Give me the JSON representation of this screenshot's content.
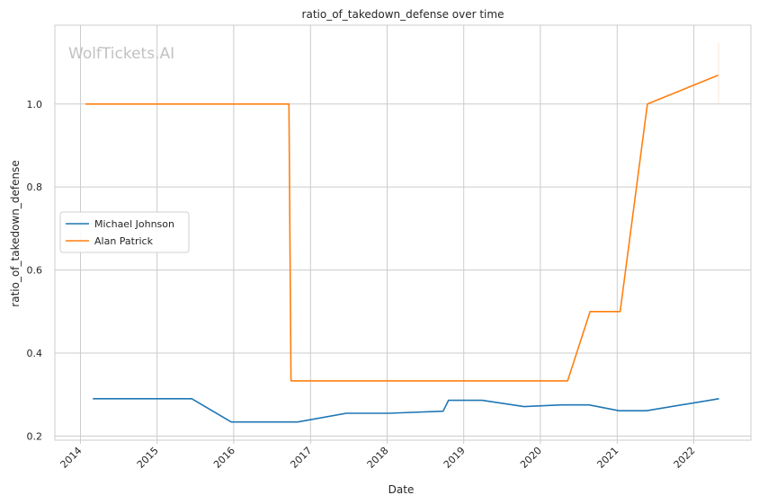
{
  "chart_data": {
    "type": "line",
    "title": "ratio_of_takedown_defense over time",
    "xlabel": "Date",
    "ylabel": "ratio_of_takedown_defense",
    "watermark": "WolfTickets.AI",
    "xlim": [
      "2013-09-01",
      "2022-09-30"
    ],
    "ylim": [
      0.19,
      1.19
    ],
    "x_ticks": [
      "2014",
      "2015",
      "2016",
      "2017",
      "2018",
      "2019",
      "2020",
      "2021",
      "2022"
    ],
    "y_ticks": [
      {
        "value": 0.2,
        "label": "0.2"
      },
      {
        "value": 0.4,
        "label": "0.4"
      },
      {
        "value": 0.6,
        "label": "0.6"
      },
      {
        "value": 0.8,
        "label": "0.8"
      },
      {
        "value": 1.0,
        "label": "1.0"
      }
    ],
    "grid": true,
    "legend_position": "center-left",
    "series": [
      {
        "name": "Michael Johnson",
        "color": "#1f77b4",
        "points": [
          [
            "2014-03-01",
            0.29
          ],
          [
            "2015-06-15",
            0.29
          ],
          [
            "2015-12-20",
            0.234
          ],
          [
            "2016-11-01",
            0.234
          ],
          [
            "2017-06-20",
            0.255
          ],
          [
            "2018-01-10",
            0.255
          ],
          [
            "2018-09-25",
            0.26
          ],
          [
            "2018-10-20",
            0.286
          ],
          [
            "2019-03-30",
            0.286
          ],
          [
            "2019-10-15",
            0.271
          ],
          [
            "2020-04-10",
            0.275
          ],
          [
            "2020-08-20",
            0.275
          ],
          [
            "2021-01-10",
            0.261
          ],
          [
            "2021-05-20",
            0.261
          ],
          [
            "2022-05-01",
            0.29
          ]
        ]
      },
      {
        "name": "Alan Patrick",
        "color": "#ff7f0e",
        "points": [
          [
            "2014-01-25",
            1.0
          ],
          [
            "2016-09-20",
            1.0
          ],
          [
            "2016-09-30",
            0.333
          ],
          [
            "2020-05-10",
            0.333
          ],
          [
            "2020-08-25",
            0.5
          ],
          [
            "2021-01-15",
            0.5
          ],
          [
            "2021-05-25",
            1.0
          ],
          [
            "2022-05-01",
            1.07
          ]
        ]
      }
    ]
  }
}
